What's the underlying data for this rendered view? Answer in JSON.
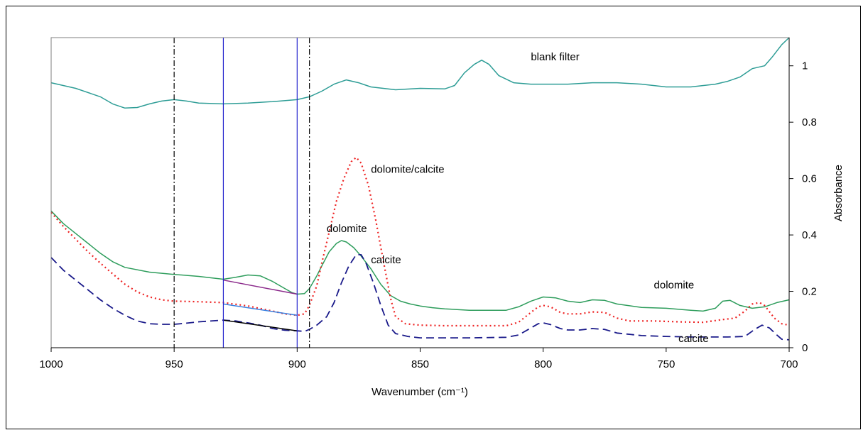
{
  "chart_data": {
    "type": "line",
    "title": "",
    "xlabel": "Wavenumber (cm⁻¹)",
    "ylabel": "Absorbance",
    "xlim": [
      1000,
      700
    ],
    "ylim": [
      0,
      1.1
    ],
    "x_reversed": true,
    "y_axis_side": "right",
    "grid": false,
    "legend": "none",
    "x_ticks": [
      1000,
      950,
      900,
      850,
      800,
      750,
      700
    ],
    "y_ticks": [
      0,
      0.2,
      0.4,
      0.6,
      0.8,
      1
    ],
    "series": [
      {
        "key": "blank",
        "color": "#2e9d96",
        "style": "solid",
        "points": [
          [
            1000,
            0.94
          ],
          [
            990,
            0.92
          ],
          [
            980,
            0.89
          ],
          [
            975,
            0.865
          ],
          [
            970,
            0.85
          ],
          [
            965,
            0.852
          ],
          [
            960,
            0.865
          ],
          [
            955,
            0.875
          ],
          [
            950,
            0.88
          ],
          [
            945,
            0.875
          ],
          [
            940,
            0.868
          ],
          [
            930,
            0.865
          ],
          [
            920,
            0.868
          ],
          [
            910,
            0.873
          ],
          [
            900,
            0.88
          ],
          [
            895,
            0.89
          ],
          [
            890,
            0.91
          ],
          [
            885,
            0.935
          ],
          [
            880,
            0.95
          ],
          [
            875,
            0.94
          ],
          [
            870,
            0.925
          ],
          [
            860,
            0.915
          ],
          [
            850,
            0.92
          ],
          [
            840,
            0.918
          ],
          [
            836,
            0.93
          ],
          [
            832,
            0.975
          ],
          [
            828,
            1.005
          ],
          [
            825,
            1.02
          ],
          [
            822,
            1.005
          ],
          [
            818,
            0.965
          ],
          [
            812,
            0.94
          ],
          [
            805,
            0.935
          ],
          [
            790,
            0.935
          ],
          [
            780,
            0.94
          ],
          [
            770,
            0.94
          ],
          [
            760,
            0.935
          ],
          [
            750,
            0.925
          ],
          [
            740,
            0.925
          ],
          [
            730,
            0.935
          ],
          [
            725,
            0.945
          ],
          [
            720,
            0.96
          ],
          [
            715,
            0.99
          ],
          [
            710,
            1.0
          ],
          [
            707,
            1.03
          ],
          [
            703,
            1.075
          ],
          [
            700,
            1.1
          ]
        ]
      },
      {
        "key": "dolomite",
        "color": "#2e9d5c",
        "style": "solid",
        "points": [
          [
            1000,
            0.485
          ],
          [
            995,
            0.44
          ],
          [
            990,
            0.405
          ],
          [
            985,
            0.37
          ],
          [
            980,
            0.335
          ],
          [
            975,
            0.305
          ],
          [
            970,
            0.285
          ],
          [
            960,
            0.268
          ],
          [
            950,
            0.26
          ],
          [
            940,
            0.253
          ],
          [
            930,
            0.243
          ],
          [
            925,
            0.25
          ],
          [
            920,
            0.258
          ],
          [
            915,
            0.255
          ],
          [
            910,
            0.235
          ],
          [
            905,
            0.21
          ],
          [
            902,
            0.195
          ],
          [
            900,
            0.19
          ],
          [
            897,
            0.192
          ],
          [
            895,
            0.21
          ],
          [
            892,
            0.255
          ],
          [
            890,
            0.29
          ],
          [
            887,
            0.34
          ],
          [
            884,
            0.37
          ],
          [
            882,
            0.38
          ],
          [
            880,
            0.375
          ],
          [
            877,
            0.355
          ],
          [
            874,
            0.325
          ],
          [
            870,
            0.28
          ],
          [
            866,
            0.225
          ],
          [
            862,
            0.185
          ],
          [
            858,
            0.165
          ],
          [
            854,
            0.155
          ],
          [
            850,
            0.148
          ],
          [
            845,
            0.142
          ],
          [
            840,
            0.138
          ],
          [
            830,
            0.133
          ],
          [
            815,
            0.133
          ],
          [
            810,
            0.145
          ],
          [
            805,
            0.165
          ],
          [
            800,
            0.18
          ],
          [
            795,
            0.177
          ],
          [
            790,
            0.165
          ],
          [
            785,
            0.16
          ],
          [
            780,
            0.17
          ],
          [
            775,
            0.168
          ],
          [
            770,
            0.155
          ],
          [
            760,
            0.143
          ],
          [
            750,
            0.14
          ],
          [
            740,
            0.133
          ],
          [
            735,
            0.13
          ],
          [
            730,
            0.14
          ],
          [
            727,
            0.165
          ],
          [
            724,
            0.168
          ],
          [
            720,
            0.15
          ],
          [
            715,
            0.14
          ],
          [
            710,
            0.145
          ],
          [
            705,
            0.16
          ],
          [
            700,
            0.17
          ]
        ]
      },
      {
        "key": "dolomite-calcite",
        "color": "#ee2222",
        "style": "dotted",
        "points": [
          [
            1000,
            0.48
          ],
          [
            995,
            0.43
          ],
          [
            990,
            0.385
          ],
          [
            985,
            0.34
          ],
          [
            980,
            0.3
          ],
          [
            975,
            0.262
          ],
          [
            970,
            0.225
          ],
          [
            965,
            0.198
          ],
          [
            960,
            0.18
          ],
          [
            955,
            0.17
          ],
          [
            950,
            0.165
          ],
          [
            940,
            0.163
          ],
          [
            930,
            0.16
          ],
          [
            920,
            0.148
          ],
          [
            910,
            0.13
          ],
          [
            905,
            0.12
          ],
          [
            900,
            0.115
          ],
          [
            897,
            0.12
          ],
          [
            895,
            0.15
          ],
          [
            892,
            0.22
          ],
          [
            890,
            0.3
          ],
          [
            887,
            0.41
          ],
          [
            884,
            0.52
          ],
          [
            881,
            0.6
          ],
          [
            878,
            0.66
          ],
          [
            876,
            0.675
          ],
          [
            874,
            0.655
          ],
          [
            871,
            0.575
          ],
          [
            868,
            0.45
          ],
          [
            865,
            0.31
          ],
          [
            862,
            0.175
          ],
          [
            860,
            0.11
          ],
          [
            856,
            0.085
          ],
          [
            850,
            0.08
          ],
          [
            840,
            0.078
          ],
          [
            830,
            0.078
          ],
          [
            815,
            0.078
          ],
          [
            810,
            0.09
          ],
          [
            805,
            0.125
          ],
          [
            802,
            0.145
          ],
          [
            800,
            0.15
          ],
          [
            797,
            0.145
          ],
          [
            793,
            0.125
          ],
          [
            790,
            0.12
          ],
          [
            785,
            0.12
          ],
          [
            780,
            0.127
          ],
          [
            775,
            0.125
          ],
          [
            770,
            0.105
          ],
          [
            765,
            0.095
          ],
          [
            755,
            0.095
          ],
          [
            745,
            0.092
          ],
          [
            735,
            0.09
          ],
          [
            727,
            0.1
          ],
          [
            722,
            0.105
          ],
          [
            718,
            0.13
          ],
          [
            715,
            0.155
          ],
          [
            712,
            0.16
          ],
          [
            710,
            0.15
          ],
          [
            706,
            0.105
          ],
          [
            703,
            0.085
          ],
          [
            700,
            0.08
          ]
        ]
      },
      {
        "key": "calcite",
        "color": "#1a1a8a",
        "style": "dashed",
        "points": [
          [
            1000,
            0.32
          ],
          [
            995,
            0.275
          ],
          [
            990,
            0.24
          ],
          [
            985,
            0.205
          ],
          [
            980,
            0.17
          ],
          [
            975,
            0.14
          ],
          [
            970,
            0.115
          ],
          [
            965,
            0.095
          ],
          [
            960,
            0.085
          ],
          [
            955,
            0.083
          ],
          [
            950,
            0.083
          ],
          [
            945,
            0.087
          ],
          [
            940,
            0.092
          ],
          [
            930,
            0.098
          ],
          [
            925,
            0.095
          ],
          [
            920,
            0.088
          ],
          [
            915,
            0.08
          ],
          [
            910,
            0.068
          ],
          [
            905,
            0.062
          ],
          [
            900,
            0.06
          ],
          [
            897,
            0.058
          ],
          [
            895,
            0.065
          ],
          [
            892,
            0.08
          ],
          [
            888,
            0.11
          ],
          [
            885,
            0.16
          ],
          [
            882,
            0.23
          ],
          [
            879,
            0.29
          ],
          [
            876,
            0.33
          ],
          [
            874,
            0.33
          ],
          [
            872,
            0.3
          ],
          [
            869,
            0.23
          ],
          [
            866,
            0.15
          ],
          [
            863,
            0.08
          ],
          [
            860,
            0.05
          ],
          [
            855,
            0.04
          ],
          [
            850,
            0.035
          ],
          [
            840,
            0.035
          ],
          [
            830,
            0.035
          ],
          [
            815,
            0.037
          ],
          [
            810,
            0.045
          ],
          [
            805,
            0.07
          ],
          [
            802,
            0.085
          ],
          [
            800,
            0.088
          ],
          [
            797,
            0.082
          ],
          [
            793,
            0.068
          ],
          [
            790,
            0.063
          ],
          [
            785,
            0.063
          ],
          [
            780,
            0.068
          ],
          [
            775,
            0.065
          ],
          [
            770,
            0.052
          ],
          [
            760,
            0.043
          ],
          [
            750,
            0.04
          ],
          [
            740,
            0.038
          ],
          [
            725,
            0.038
          ],
          [
            718,
            0.04
          ],
          [
            714,
            0.065
          ],
          [
            711,
            0.08
          ],
          [
            708,
            0.07
          ],
          [
            705,
            0.045
          ],
          [
            703,
            0.03
          ],
          [
            700,
            0.028
          ]
        ]
      },
      {
        "key": "base-dolomite",
        "color": "#8b2a8b",
        "style": "solid",
        "points": [
          [
            930,
            0.24
          ],
          [
            900,
            0.19
          ]
        ]
      },
      {
        "key": "base-mixture",
        "color": "#3a80e0",
        "style": "solid",
        "points": [
          [
            930,
            0.155
          ],
          [
            900,
            0.115
          ]
        ]
      },
      {
        "key": "base-calcite",
        "color": "#000000",
        "style": "solid",
        "points": [
          [
            930,
            0.098
          ],
          [
            900,
            0.06
          ]
        ]
      }
    ],
    "vertical_lines": [
      {
        "x": 950,
        "color": "#000000",
        "style": "dashdot"
      },
      {
        "x": 930,
        "color": "#2222cc",
        "style": "solid"
      },
      {
        "x": 900,
        "color": "#2222cc",
        "style": "solid"
      },
      {
        "x": 895,
        "color": "#000000",
        "style": "dashdot"
      }
    ],
    "annotations": [
      {
        "text": "blank filter",
        "x": 805,
        "y": 1.02
      },
      {
        "text": "dolomite/calcite",
        "x": 870,
        "y": 0.62
      },
      {
        "text": "dolomite",
        "x": 888,
        "y": 0.41
      },
      {
        "text": "calcite",
        "x": 870,
        "y": 0.3
      },
      {
        "text": "dolomite",
        "x": 755,
        "y": 0.21
      },
      {
        "text": "calcite",
        "x": 745,
        "y": 0.02
      }
    ]
  }
}
